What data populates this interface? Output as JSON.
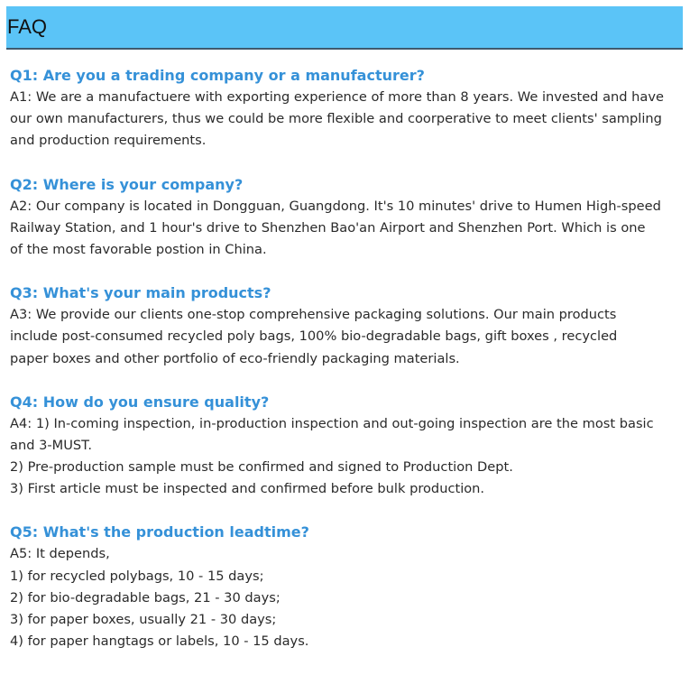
{
  "header": {
    "title": "FAQ"
  },
  "faq": [
    {
      "question": "Q1: Are you a trading company or a manufacturer?",
      "answer_lines": [
        "A1: We are a manufactuere with exporting experience of more than 8 years. We invested and have",
        "our own manufacturers, thus we could be more flexible and coorperative to meet clients' sampling",
        "and production requirements."
      ]
    },
    {
      "question": "Q2: Where is your company?",
      "answer_lines": [
        "A2: Our company is located in Dongguan, Guangdong. It's 10 minutes' drive to Humen High-speed",
        "Railway Station, and 1 hour's drive to Shenzhen Bao'an Airport and Shenzhen Port. Which is one",
        "of the most favorable postion in China."
      ]
    },
    {
      "question": "Q3: What's your main products?",
      "answer_lines": [
        "A3: We provide our clients one-stop comprehensive packaging solutions. Our main products",
        "include post-consumed recycled poly bags, 100% bio-degradable bags, gift boxes , recycled",
        "paper boxes and other portfolio of eco-friendly packaging materials."
      ]
    },
    {
      "question": "Q4: How do you ensure quality?",
      "answer_lines": [
        "A4: 1) In-coming inspection, in-production inspection and out-going inspection are the most basic",
        "and 3-MUST.",
        "2) Pre-production sample must be confirmed and signed to Production Dept.",
        "3) First article must be inspected and confirmed before bulk production."
      ]
    },
    {
      "question": "Q5: What's the production leadtime?",
      "answer_lines": [
        "A5: It depends,",
        "1) for recycled polybags, 10 - 15 days;",
        "2) for bio-degradable bags, 21 - 30 days;",
        "3) for paper boxes, usually 21 - 30 days;",
        "4) for paper hangtags or labels, 10 - 15 days."
      ]
    }
  ]
}
